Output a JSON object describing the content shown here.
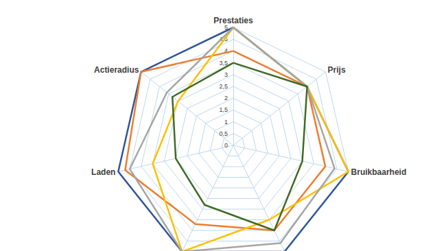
{
  "chart_data": {
    "type": "radar",
    "categories": [
      "Prestaties",
      "Actieradius",
      "Laden",
      null,
      null,
      "Bruikbaarheid",
      "Prijs"
    ],
    "ylim": [
      0,
      5
    ],
    "yticks": [
      0,
      {
        "value": 0.5,
        "label": "0,5"
      },
      1,
      {
        "value": 1.5,
        "label": "1,5"
      },
      2,
      {
        "value": 2.5,
        "label": "2,5"
      },
      3,
      {
        "value": 3.5,
        "label": "3,5"
      },
      4,
      {
        "value": 4.5,
        "label": "4,5"
      },
      5
    ],
    "grid": true,
    "series": [
      {
        "color": "#2f5597",
        "values": [
          5,
          5,
          5,
          5,
          5,
          5,
          4
        ]
      },
      {
        "color": "#ed7d31",
        "values": [
          4,
          5,
          4.7,
          3.7,
          4,
          4,
          4
        ]
      },
      {
        "color": "#ffc000",
        "values": [
          5,
          3,
          3.5,
          5,
          3.5,
          5,
          4
        ]
      },
      {
        "color": "#a5a5a5",
        "values": [
          5,
          3.6,
          4.5,
          5,
          4.6,
          4.4,
          4
        ]
      },
      {
        "color": "#3f6b22",
        "values": [
          3.5,
          3.3,
          2.5,
          2.8,
          4,
          3,
          4
        ]
      }
    ]
  }
}
